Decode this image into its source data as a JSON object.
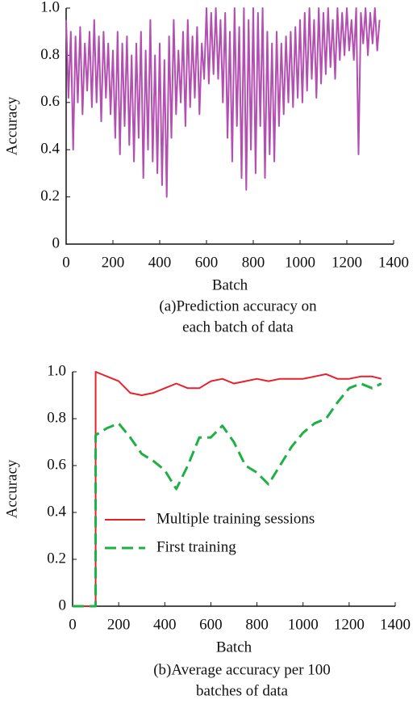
{
  "chart_data": [
    {
      "type": "line",
      "xlabel": "Batch",
      "ylabel": "Accuracy",
      "caption": [
        "(a)Prediction accuracy on",
        "each batch of data"
      ],
      "x": [
        0,
        10,
        20,
        30,
        40,
        50,
        60,
        70,
        80,
        90,
        100,
        110,
        120,
        130,
        140,
        150,
        160,
        170,
        180,
        190,
        200,
        210,
        220,
        230,
        240,
        250,
        260,
        270,
        280,
        290,
        300,
        310,
        320,
        330,
        340,
        350,
        360,
        370,
        380,
        390,
        400,
        410,
        420,
        430,
        440,
        450,
        460,
        470,
        480,
        490,
        500,
        510,
        520,
        530,
        540,
        550,
        560,
        570,
        580,
        590,
        600,
        610,
        620,
        630,
        640,
        650,
        660,
        670,
        680,
        690,
        700,
        710,
        720,
        730,
        740,
        750,
        760,
        770,
        780,
        790,
        800,
        810,
        820,
        830,
        840,
        850,
        860,
        870,
        880,
        890,
        900,
        910,
        920,
        930,
        940,
        950,
        960,
        970,
        980,
        990,
        1000,
        1010,
        1020,
        1030,
        1040,
        1050,
        1060,
        1070,
        1080,
        1090,
        1100,
        1110,
        1120,
        1130,
        1140,
        1150,
        1160,
        1170,
        1180,
        1190,
        1200,
        1210,
        1220,
        1230,
        1240,
        1250,
        1260,
        1270,
        1280,
        1290,
        1300,
        1310,
        1320,
        1330,
        1340
      ],
      "series": [
        {
          "name": "Prediction accuracy",
          "color": "#b24fb0",
          "dashed": false,
          "values": [
            0.95,
            0.62,
            0.9,
            0.4,
            0.88,
            0.6,
            0.92,
            0.55,
            0.85,
            0.65,
            0.9,
            0.58,
            0.95,
            0.6,
            0.88,
            0.52,
            0.9,
            0.62,
            0.85,
            0.55,
            0.82,
            0.45,
            0.9,
            0.38,
            0.85,
            0.5,
            0.88,
            0.42,
            0.8,
            0.35,
            0.85,
            0.45,
            0.9,
            0.28,
            0.82,
            0.4,
            0.95,
            0.35,
            0.8,
            0.3,
            0.85,
            0.25,
            0.78,
            0.2,
            0.88,
            0.45,
            0.95,
            0.55,
            0.82,
            0.6,
            0.9,
            0.5,
            0.95,
            0.58,
            0.88,
            0.62,
            0.92,
            0.55,
            0.85,
            0.7,
            1.0,
            0.68,
            0.98,
            0.72,
            1.0,
            0.7,
            0.95,
            0.6,
            0.98,
            0.45,
            0.9,
            0.35,
            1.0,
            0.5,
            0.92,
            0.28,
            1.0,
            0.23,
            0.95,
            0.4,
            1.0,
            0.3,
            0.98,
            0.5,
            1.0,
            0.28,
            0.9,
            0.38,
            0.85,
            0.35,
            0.9,
            0.5,
            0.85,
            0.55,
            0.88,
            0.6,
            0.9,
            0.58,
            0.92,
            0.62,
            0.95,
            0.6,
            0.98,
            0.65,
            1.0,
            0.7,
            0.95,
            0.62,
            1.0,
            0.68,
            0.98,
            0.72,
            1.0,
            0.75,
            0.95,
            0.7,
            1.0,
            0.78,
            0.98,
            0.8,
            1.0,
            0.82,
            0.95,
            0.78,
            1.0,
            0.38,
            0.98,
            0.85,
            1.0,
            0.8,
            0.98,
            0.85,
            1.0,
            0.82,
            0.95
          ]
        }
      ],
      "xlim": [
        0,
        1400
      ],
      "xticks": [
        0,
        200,
        400,
        600,
        800,
        1000,
        1200,
        1400
      ],
      "ylim": [
        0,
        1
      ],
      "yticks": [
        0,
        0.2,
        0.4,
        0.6,
        0.8,
        {
          "value": 1,
          "label": "1.0"
        }
      ],
      "legend": false
    },
    {
      "type": "line",
      "xlabel": "Batch",
      "ylabel": "Accuracy",
      "caption": [
        "(b)Average accuracy per 100",
        "batches of data"
      ],
      "x": [
        0,
        100,
        100,
        150,
        200,
        250,
        300,
        350,
        400,
        450,
        500,
        550,
        600,
        650,
        700,
        750,
        800,
        850,
        900,
        950,
        1000,
        1050,
        1100,
        1150,
        1200,
        1250,
        1300,
        1340
      ],
      "series": [
        {
          "name": "Multiple training sessions",
          "color": "#e8202a",
          "dashed": false,
          "values": [
            0,
            0,
            1.0,
            0.98,
            0.96,
            0.91,
            0.9,
            0.91,
            0.93,
            0.95,
            0.93,
            0.93,
            0.96,
            0.97,
            0.95,
            0.96,
            0.97,
            0.96,
            0.97,
            0.97,
            0.97,
            0.98,
            0.99,
            0.97,
            0.97,
            0.98,
            0.98,
            0.97
          ]
        },
        {
          "name": "First training",
          "color": "#1fb045",
          "dashed": true,
          "values": [
            0,
            0,
            0.73,
            0.76,
            0.78,
            0.72,
            0.65,
            0.62,
            0.58,
            0.5,
            0.6,
            0.72,
            0.72,
            0.77,
            0.7,
            0.6,
            0.57,
            0.52,
            0.6,
            0.68,
            0.74,
            0.78,
            0.8,
            0.87,
            0.93,
            0.95,
            0.93,
            0.95
          ]
        }
      ],
      "xlim": [
        0,
        1400
      ],
      "xticks": [
        0,
        200,
        400,
        600,
        800,
        1000,
        1200,
        1400
      ],
      "ylim": [
        0,
        1
      ],
      "yticks": [
        0,
        0.2,
        0.4,
        0.6,
        0.8,
        {
          "value": 1,
          "label": "1.0"
        }
      ],
      "legend": true
    }
  ]
}
